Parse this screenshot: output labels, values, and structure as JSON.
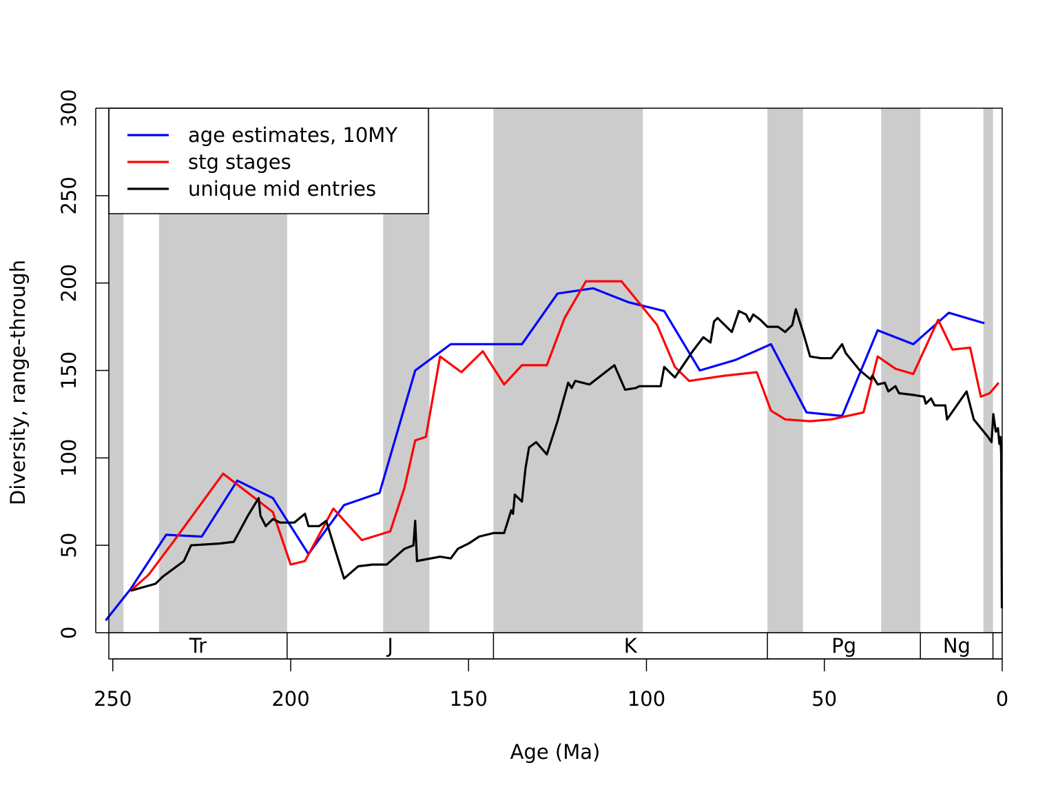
{
  "chart_data": {
    "type": "line",
    "title": "",
    "xlabel": "Age (Ma)",
    "ylabel": "Diversity, range-through",
    "xlim": [
      252,
      0
    ],
    "ylim": [
      0,
      300
    ],
    "x_ticks": [
      "250",
      "200",
      "150",
      "100",
      "50",
      "0"
    ],
    "y_ticks": [
      "0",
      "50",
      "100",
      "150",
      "200",
      "250",
      "300"
    ],
    "grid": false,
    "legend_position": "top-left",
    "shaded_intervals": [
      [
        252,
        247
      ],
      [
        237,
        201
      ],
      [
        174,
        161
      ],
      [
        143,
        101
      ],
      [
        66,
        56
      ],
      [
        34,
        23
      ],
      [
        5.3,
        2.6
      ]
    ],
    "periods": [
      {
        "label": "Tr",
        "start": 252,
        "end": 201
      },
      {
        "label": "J",
        "start": 201,
        "end": 143
      },
      {
        "label": "K",
        "start": 143,
        "end": 66
      },
      {
        "label": "Pg",
        "start": 66,
        "end": 23
      },
      {
        "label": "Ng",
        "start": 23,
        "end": 2.6
      },
      {
        "label": "",
        "start": 2.6,
        "end": 0
      }
    ],
    "series": [
      {
        "name": "age estimates, 10MY",
        "color": "#0000ff",
        "points": [
          [
            252,
            7
          ],
          [
            245,
            25
          ],
          [
            235,
            56
          ],
          [
            225,
            55
          ],
          [
            215,
            87
          ],
          [
            205,
            77
          ],
          [
            195,
            45
          ],
          [
            185,
            73
          ],
          [
            175,
            80
          ],
          [
            165,
            150
          ],
          [
            155,
            165
          ],
          [
            145,
            165
          ],
          [
            135,
            165
          ],
          [
            125,
            194
          ],
          [
            115,
            197
          ],
          [
            105,
            189
          ],
          [
            95,
            184
          ],
          [
            85,
            150
          ],
          [
            75,
            156
          ],
          [
            65,
            165
          ],
          [
            55,
            126
          ],
          [
            45,
            124
          ],
          [
            35,
            173
          ],
          [
            25,
            165
          ],
          [
            15,
            183
          ],
          [
            5,
            177
          ]
        ]
      },
      {
        "name": "stg stages",
        "color": "#ff0000",
        "points": [
          [
            245,
            24
          ],
          [
            240,
            33
          ],
          [
            233,
            52
          ],
          [
            219,
            91
          ],
          [
            205,
            69
          ],
          [
            200,
            39
          ],
          [
            196,
            41
          ],
          [
            188,
            71
          ],
          [
            180,
            53
          ],
          [
            172,
            58
          ],
          [
            168,
            83
          ],
          [
            165,
            110
          ],
          [
            162,
            112
          ],
          [
            158,
            158
          ],
          [
            152,
            149
          ],
          [
            146,
            161
          ],
          [
            140,
            142
          ],
          [
            135,
            153
          ],
          [
            128,
            153
          ],
          [
            123,
            180
          ],
          [
            117,
            201
          ],
          [
            107,
            201
          ],
          [
            97,
            176
          ],
          [
            92,
            152
          ],
          [
            88,
            144
          ],
          [
            78,
            147
          ],
          [
            69,
            149
          ],
          [
            65,
            127
          ],
          [
            61,
            122
          ],
          [
            54,
            121
          ],
          [
            48,
            122
          ],
          [
            39,
            126
          ],
          [
            35,
            158
          ],
          [
            30,
            151
          ],
          [
            25,
            148
          ],
          [
            18,
            179
          ],
          [
            14,
            162
          ],
          [
            9,
            163
          ],
          [
            6,
            135
          ],
          [
            3.5,
            137
          ],
          [
            1,
            143
          ]
        ]
      },
      {
        "name": "unique mid entries",
        "color": "#000000",
        "points": [
          [
            245,
            24
          ],
          [
            238,
            28
          ],
          [
            236,
            32
          ],
          [
            232,
            38
          ],
          [
            230,
            41
          ],
          [
            228,
            50
          ],
          [
            220,
            51
          ],
          [
            216,
            52
          ],
          [
            212,
            67
          ],
          [
            209,
            77
          ],
          [
            208.5,
            67
          ],
          [
            207,
            61
          ],
          [
            205,
            65
          ],
          [
            203,
            63
          ],
          [
            199,
            63
          ],
          [
            196,
            68
          ],
          [
            195,
            61
          ],
          [
            192,
            61
          ],
          [
            190,
            64
          ],
          [
            185,
            31
          ],
          [
            181,
            38
          ],
          [
            177,
            39
          ],
          [
            173,
            39
          ],
          [
            168,
            48
          ],
          [
            165.5,
            50
          ],
          [
            165,
            64
          ],
          [
            164.5,
            41
          ],
          [
            162,
            42
          ],
          [
            158,
            43.5
          ],
          [
            155,
            42.5
          ],
          [
            153,
            48
          ],
          [
            150,
            51
          ],
          [
            147,
            55
          ],
          [
            143,
            57
          ],
          [
            140,
            57
          ],
          [
            138,
            70
          ],
          [
            137.5,
            68
          ],
          [
            137,
            79
          ],
          [
            135,
            75
          ],
          [
            134,
            94
          ],
          [
            133,
            106
          ],
          [
            131,
            109
          ],
          [
            128,
            102
          ],
          [
            125,
            121
          ],
          [
            122,
            143
          ],
          [
            121,
            140
          ],
          [
            120,
            144
          ],
          [
            116,
            142
          ],
          [
            109,
            153
          ],
          [
            106,
            139
          ],
          [
            103,
            140
          ],
          [
            102,
            141
          ],
          [
            96,
            141
          ],
          [
            95,
            152
          ],
          [
            94,
            150
          ],
          [
            92,
            146
          ],
          [
            89,
            155
          ],
          [
            87,
            161
          ],
          [
            84,
            169
          ],
          [
            82,
            166
          ],
          [
            81,
            178
          ],
          [
            80,
            180
          ],
          [
            77,
            174
          ],
          [
            76,
            172
          ],
          [
            74,
            184
          ],
          [
            72,
            182
          ],
          [
            71,
            178
          ],
          [
            70,
            182
          ],
          [
            68,
            179
          ],
          [
            66,
            175
          ],
          [
            63,
            175
          ],
          [
            61,
            172
          ],
          [
            59,
            176
          ],
          [
            58,
            185
          ],
          [
            56,
            172
          ],
          [
            54,
            158
          ],
          [
            51,
            157
          ],
          [
            48,
            157
          ],
          [
            45,
            165
          ],
          [
            44,
            160
          ],
          [
            40,
            150
          ],
          [
            37,
            145
          ],
          [
            36.5,
            147
          ],
          [
            35,
            142
          ],
          [
            33,
            143
          ],
          [
            32,
            138
          ],
          [
            30,
            141
          ],
          [
            29,
            137
          ],
          [
            25,
            136
          ],
          [
            22,
            135
          ],
          [
            21.5,
            131
          ],
          [
            20,
            134
          ],
          [
            19,
            130
          ],
          [
            16,
            130
          ],
          [
            15.5,
            122
          ],
          [
            10,
            138
          ],
          [
            8,
            122
          ],
          [
            4,
            112
          ],
          [
            3,
            109
          ],
          [
            2.5,
            125
          ],
          [
            1.8,
            115
          ],
          [
            1.2,
            117
          ],
          [
            0.8,
            108
          ],
          [
            0.5,
            112
          ],
          [
            0.3,
            103
          ],
          [
            0.1,
            14
          ]
        ]
      }
    ]
  }
}
